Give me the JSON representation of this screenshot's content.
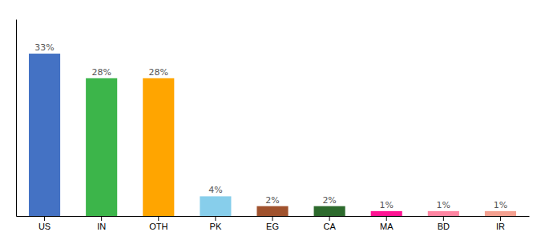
{
  "chart_data": {
    "type": "bar",
    "categories": [
      "US",
      "IN",
      "OTH",
      "PK",
      "EG",
      "CA",
      "MA",
      "BD",
      "IR"
    ],
    "values": [
      33,
      28,
      28,
      4,
      2,
      2,
      1,
      1,
      1
    ],
    "value_labels": [
      "33%",
      "28%",
      "28%",
      "4%",
      "2%",
      "2%",
      "1%",
      "1%",
      "1%"
    ],
    "colors": [
      "#4472C4",
      "#3CB54A",
      "#FFA500",
      "#87CEEB",
      "#A0522D",
      "#2D6A2D",
      "#FF1493",
      "#FF85A2",
      "#F4A090"
    ],
    "ylim": [
      0,
      40
    ],
    "data_labels": true,
    "tick_labels": "x"
  }
}
